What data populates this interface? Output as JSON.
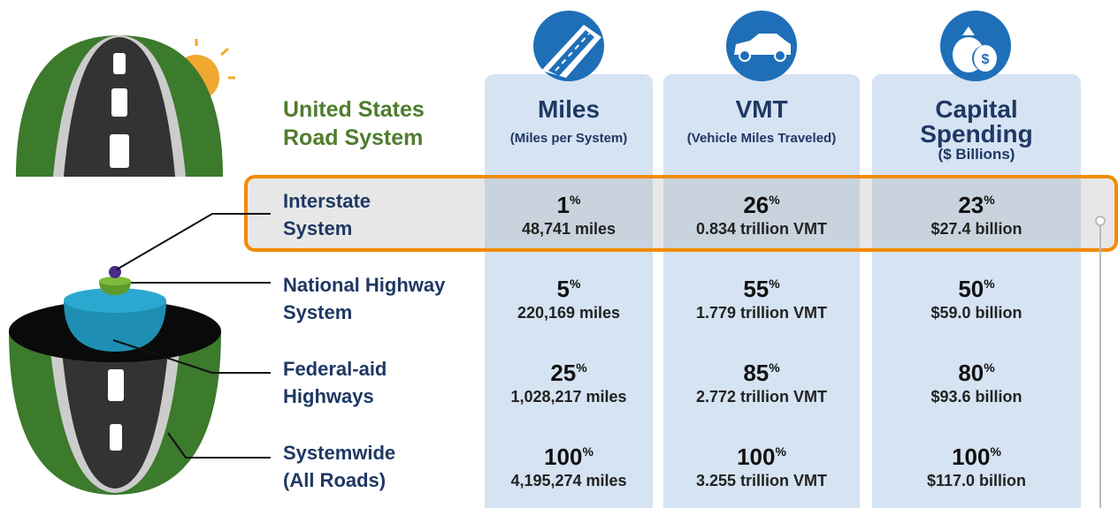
{
  "title": [
    "United States",
    "Road System"
  ],
  "columns": [
    {
      "title": [
        "Miles"
      ],
      "subtitle": "(Miles per System)"
    },
    {
      "title": [
        "VMT"
      ],
      "subtitle": "(Vehicle Miles Traveled)"
    },
    {
      "title": [
        "Capital",
        "Spending"
      ],
      "subtitle": "($ Billions)"
    }
  ],
  "rows": [
    {
      "label": [
        "Interstate",
        "System"
      ],
      "cells": [
        {
          "percent": "1",
          "unit": "%",
          "detail": "48,741 miles"
        },
        {
          "percent": "26",
          "unit": "%",
          "detail": "0.834 trillion VMT"
        },
        {
          "percent": "23",
          "unit": "%",
          "detail": "$27.4 billion"
        }
      ]
    },
    {
      "label": [
        "National Highway",
        "System"
      ],
      "cells": [
        {
          "percent": "5",
          "unit": "%",
          "detail": "220,169 miles"
        },
        {
          "percent": "55",
          "unit": "%",
          "detail": "1.779 trillion VMT"
        },
        {
          "percent": "50",
          "unit": "%",
          "detail": "$59.0 billion"
        }
      ]
    },
    {
      "label": [
        "Federal-aid",
        "Highways"
      ],
      "cells": [
        {
          "percent": "25",
          "unit": "%",
          "detail": "1,028,217 miles"
        },
        {
          "percent": "85",
          "unit": "%",
          "detail": "2.772 trillion VMT"
        },
        {
          "percent": "80",
          "unit": "%",
          "detail": "$93.6 billion"
        }
      ]
    },
    {
      "label": [
        "Systemwide",
        "(All Roads)"
      ],
      "cells": [
        {
          "percent": "100",
          "unit": "%",
          "detail": "4,195,274 miles"
        },
        {
          "percent": "100",
          "unit": "%",
          "detail": "3.255 trillion VMT"
        },
        {
          "percent": "100",
          "unit": "%",
          "detail": "$117.0 billion"
        }
      ]
    }
  ]
}
